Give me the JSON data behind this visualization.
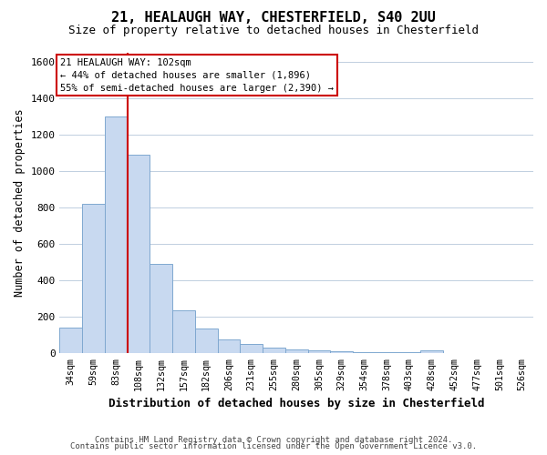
{
  "title_line1": "21, HEALAUGH WAY, CHESTERFIELD, S40 2UU",
  "title_line2": "Size of property relative to detached houses in Chesterfield",
  "xlabel": "Distribution of detached houses by size in Chesterfield",
  "ylabel": "Number of detached properties",
  "categories": [
    "34sqm",
    "59sqm",
    "83sqm",
    "108sqm",
    "132sqm",
    "157sqm",
    "182sqm",
    "206sqm",
    "231sqm",
    "255sqm",
    "280sqm",
    "305sqm",
    "329sqm",
    "354sqm",
    "378sqm",
    "403sqm",
    "428sqm",
    "452sqm",
    "477sqm",
    "501sqm",
    "526sqm"
  ],
  "values": [
    140,
    820,
    1300,
    1090,
    490,
    235,
    135,
    75,
    48,
    28,
    18,
    12,
    8,
    5,
    3,
    2,
    12,
    0,
    0,
    0,
    0
  ],
  "bar_color": "#c8d9f0",
  "bar_edge_color": "#7fa8d0",
  "ylim": [
    0,
    1650
  ],
  "yticks": [
    0,
    200,
    400,
    600,
    800,
    1000,
    1200,
    1400,
    1600
  ],
  "property_line_color": "#cc0000",
  "annotation_line1": "21 HEALAUGH WAY: 102sqm",
  "annotation_line2": "← 44% of detached houses are smaller (1,896)",
  "annotation_line3": "55% of semi-detached houses are larger (2,390) →",
  "annotation_box_color": "#cc0000",
  "footer_line1": "Contains HM Land Registry data © Crown copyright and database right 2024.",
  "footer_line2": "Contains public sector information licensed under the Open Government Licence v3.0.",
  "background_color": "#ffffff",
  "grid_color": "#c0cfe0"
}
